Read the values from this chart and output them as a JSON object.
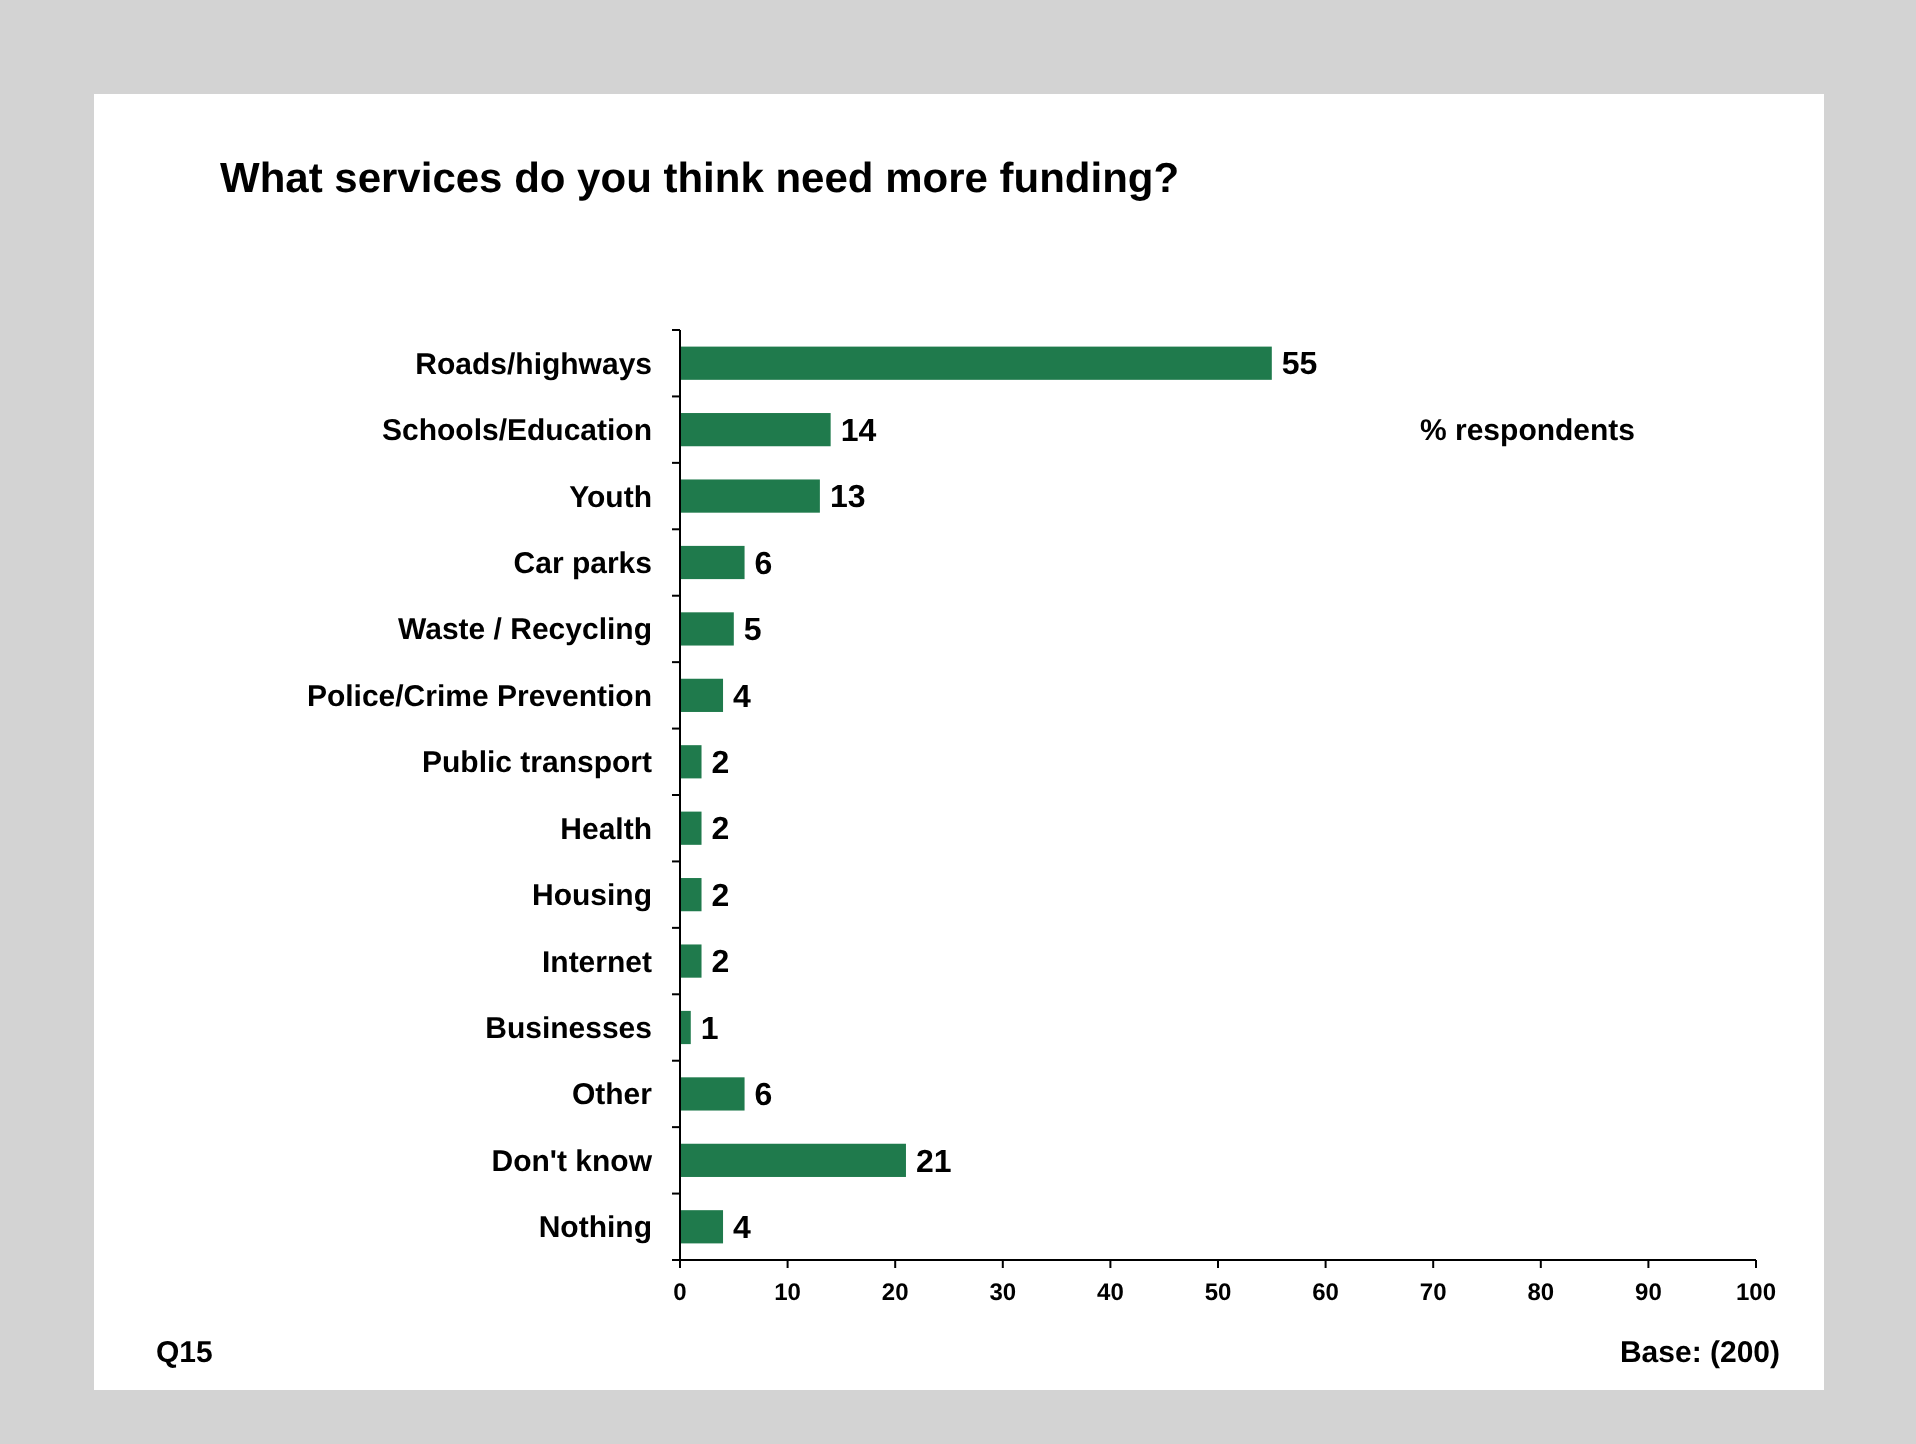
{
  "chart_data": {
    "type": "bar",
    "orientation": "horizontal",
    "title": "What services do you think need more funding?",
    "categories": [
      "Roads/highways",
      "Schools/Education",
      "Youth",
      "Car parks",
      "Waste / Recycling",
      "Police/Crime Prevention",
      "Public transport",
      "Health",
      "Housing",
      "Internet",
      "Businesses",
      "Other",
      "Don't know",
      "Nothing"
    ],
    "values": [
      55,
      14,
      13,
      6,
      5,
      4,
      2,
      2,
      2,
      2,
      1,
      6,
      21,
      4
    ],
    "color": "#1f7a4c",
    "data_labels": true,
    "grid": false,
    "xlim": [
      0,
      100
    ],
    "xticks": [
      0,
      10,
      20,
      30,
      40,
      50,
      60,
      70,
      80,
      90,
      100
    ],
    "annotations": [
      "% respondents",
      "Q15",
      "Base: (200)"
    ]
  }
}
